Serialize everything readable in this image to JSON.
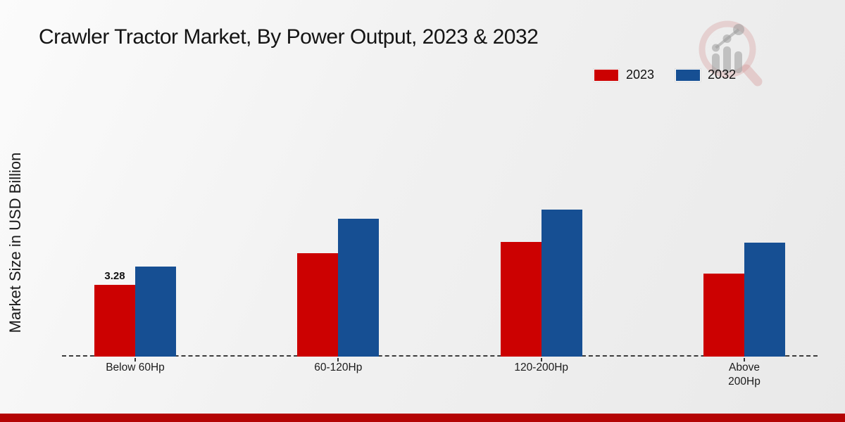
{
  "page": {
    "title": "Crawler Tractor Market, By Power Output, 2023 & 2032",
    "y_axis_label": "Market Size in USD Billion",
    "watermark_name": "market-research-future-logo",
    "footer_color": "#b40404",
    "background_color": "#efefef"
  },
  "legend": {
    "position": "top-right",
    "items": [
      {
        "label": "2023",
        "color": "#cc0101"
      },
      {
        "label": "2032",
        "color": "#164f93"
      }
    ]
  },
  "chart_data": {
    "type": "bar",
    "title": "Crawler Tractor Market, By Power Output, 2023 & 2032",
    "xlabel": "",
    "ylabel": "Market Size in USD Billion",
    "categories": [
      "Below 60Hp",
      "60-120Hp",
      "120-200Hp",
      "Above 200Hp"
    ],
    "tick_labels": [
      "Below 60Hp",
      "60-120Hp",
      "120-200Hp",
      "Above\n200Hp"
    ],
    "series": [
      {
        "name": "2023",
        "color": "#cc0101",
        "values": [
          3.28,
          4.73,
          5.24,
          3.79
        ]
      },
      {
        "name": "2032",
        "color": "#164f93",
        "values": [
          4.12,
          6.3,
          6.72,
          5.21
        ]
      }
    ],
    "bar_labels": [
      {
        "series": "2023",
        "category_index": 0,
        "text": "3.28"
      }
    ],
    "ylim": [
      0,
      7
    ],
    "grid": false,
    "axis_style": "dashed-baseline-with-ticks",
    "legend_position": "top-right"
  }
}
